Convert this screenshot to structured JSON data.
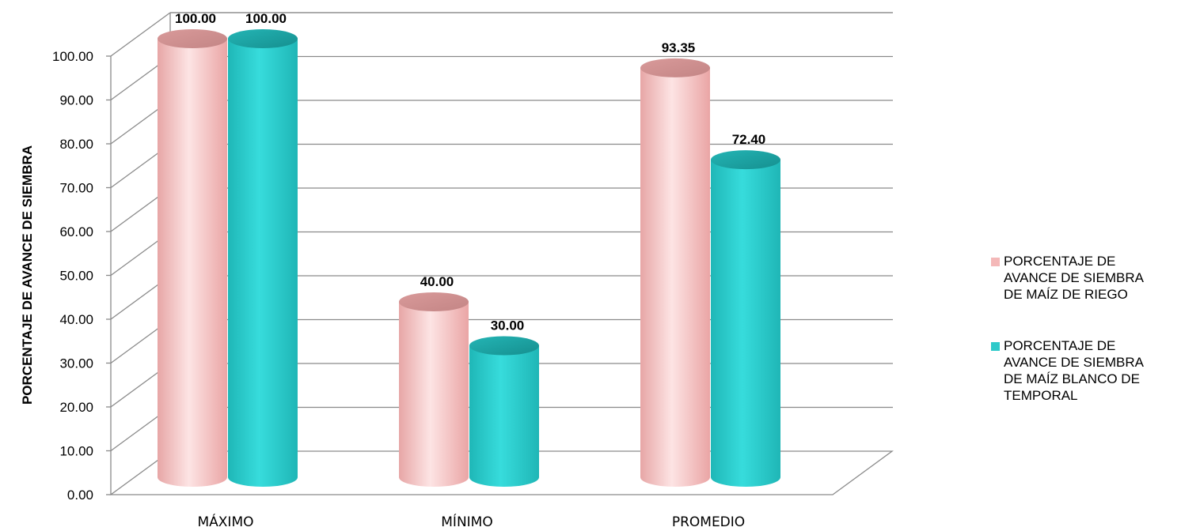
{
  "chart_data": {
    "type": "bar",
    "title": "",
    "xlabel": "",
    "ylabel": "PORCENTAJE DE AVANCE DE SIEMBRA",
    "ylim": [
      0,
      100
    ],
    "yticks": [
      "0.00",
      "10.00",
      "20.00",
      "30.00",
      "40.00",
      "50.00",
      "60.00",
      "70.00",
      "80.00",
      "90.00",
      "100.00"
    ],
    "categories": [
      "MÁXIMO",
      "MÍNIMO",
      "PROMEDIO"
    ],
    "series": [
      {
        "name": "PORCENTAJE DE AVANCE DE SIEMBRA DE MAÍZ  DE RIEGO",
        "color": "#f4b8b8",
        "values": [
          100.0,
          40.0,
          93.35
        ],
        "labels": [
          "100.00",
          "40.00",
          "93.35"
        ]
      },
      {
        "name": "PORCENTAJE DE AVANCE DE SIEMBRA DE MAÍZ BLANCO DE TEMPORAL",
        "color": "#2ec9c9",
        "values": [
          100.0,
          30.0,
          72.4
        ],
        "labels": [
          "100.00",
          "30.00",
          "72.40"
        ]
      }
    ],
    "legend": {
      "position": "right",
      "items": [
        "PORCENTAJE DE\nAVANCE DE SIEMBRA\nDE MAÍZ  DE RIEGO",
        "PORCENTAJE DE\nAVANCE DE SIEMBRA\nDE MAÍZ BLANCO DE\nTEMPORAL"
      ]
    },
    "grid": true,
    "style": "3d-cylinder"
  }
}
